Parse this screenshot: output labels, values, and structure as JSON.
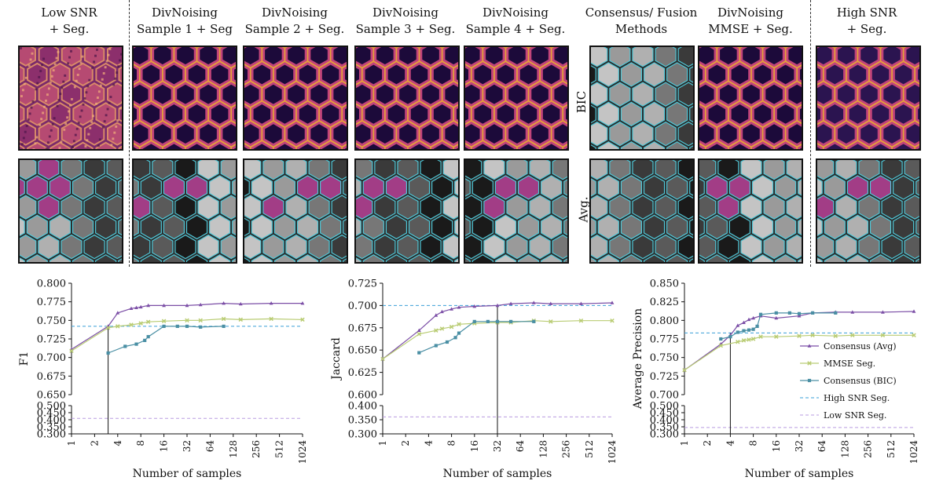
{
  "header": {
    "columns": [
      {
        "title": "Low SNR\n+ Seg.",
        "kind": "low"
      },
      {
        "title": "DivNoising\nSample 1 + Seg",
        "kind": "sample"
      },
      {
        "title": "DivNoising\nSample 2 + Seg.",
        "kind": "sample"
      },
      {
        "title": "DivNoising\nSample 3 + Seg.",
        "kind": "sample"
      },
      {
        "title": "DivNoising\nSample 4 + Seg.",
        "kind": "sample"
      },
      {
        "title": "Consensus/ Fusion\nMethods",
        "kind": "consensus"
      },
      {
        "title": "DivNoising\nMMSE + Seg.",
        "kind": "sample"
      },
      {
        "title": "High SNR\n+ Seg.",
        "kind": "high"
      }
    ],
    "row_labels": {
      "bic": "BIC",
      "avg": "Avg."
    }
  },
  "colors": {
    "avg": "#7b4ea6",
    "mmse": "#b9cc73",
    "bic": "#4a8fa4",
    "high_snr": "#3a9fd8",
    "low_snr": "#b99be0",
    "segment_magenta": "#a23d86",
    "segment_edge": "#4fc8d8"
  },
  "chart_data": [
    {
      "type": "line",
      "ylabel": "F1",
      "xlabel": "Number of samples",
      "x_scale": "log2",
      "x_ticks": [
        "1",
        "2",
        "4",
        "8",
        "16",
        "32",
        "64",
        "128",
        "256",
        "512",
        "1024"
      ],
      "ylim_upper": [
        0.65,
        0.8
      ],
      "ylim_lower": [
        0.3,
        0.5
      ],
      "y_ticks_upper": [
        "0.650",
        "0.675",
        "0.700",
        "0.725",
        "0.750",
        "0.775",
        "0.800"
      ],
      "y_ticks_lower": [
        "0.300",
        "0.350",
        "0.400",
        "0.450",
        "0.500"
      ],
      "series": [
        {
          "name": "Consensus (Avg)",
          "key": "avg",
          "x": [
            1,
            3,
            4,
            6,
            7,
            8,
            10,
            16,
            32,
            48,
            96,
            160,
            400,
            1024
          ],
          "y": [
            0.711,
            0.742,
            0.76,
            0.766,
            0.767,
            0.768,
            0.77,
            0.77,
            0.77,
            0.771,
            0.773,
            0.772,
            0.773,
            0.773
          ]
        },
        {
          "name": "MMSE Seg.",
          "key": "mmse",
          "x": [
            1,
            3,
            4,
            6,
            8,
            10,
            16,
            32,
            48,
            96,
            160,
            400,
            1024
          ],
          "y": [
            0.709,
            0.74,
            0.742,
            0.744,
            0.746,
            0.748,
            0.749,
            0.75,
            0.75,
            0.752,
            0.751,
            0.752,
            0.751
          ]
        },
        {
          "name": "Consensus (BIC)",
          "key": "bic",
          "x": [
            3,
            5,
            7,
            9,
            10,
            16,
            24,
            32,
            48,
            96
          ],
          "y": [
            0.706,
            0.715,
            0.718,
            0.723,
            0.728,
            0.742,
            0.742,
            0.742,
            0.741,
            0.742
          ]
        }
      ],
      "reference_lines": [
        {
          "name": "High SNR Seg.",
          "key": "high_snr",
          "y": 0.742
        },
        {
          "name": "Low SNR Seg.",
          "key": "low_snr",
          "y": 0.41
        }
      ],
      "crossing_x": 3
    },
    {
      "type": "line",
      "ylabel": "Jaccard",
      "xlabel": "Number of samples",
      "x_scale": "log2",
      "x_ticks": [
        "1",
        "2",
        "4",
        "8",
        "16",
        "32",
        "64",
        "128",
        "256",
        "512",
        "1024"
      ],
      "ylim_upper": [
        0.6,
        0.725
      ],
      "ylim_lower": [
        0.3,
        0.4
      ],
      "y_ticks_upper": [
        "0.600",
        "0.625",
        "0.650",
        "0.675",
        "0.700",
        "0.725"
      ],
      "y_ticks_lower": [
        "0.300",
        "0.350",
        "0.400"
      ],
      "series": [
        {
          "name": "Consensus (Avg)",
          "key": "avg",
          "x": [
            1,
            3,
            5,
            6,
            8,
            10,
            16,
            32,
            48,
            96,
            160,
            400,
            1024
          ],
          "y": [
            0.64,
            0.672,
            0.689,
            0.693,
            0.696,
            0.698,
            0.699,
            0.7,
            0.702,
            0.703,
            0.702,
            0.702,
            0.703
          ]
        },
        {
          "name": "MMSE Seg.",
          "key": "mmse",
          "x": [
            1,
            3,
            5,
            6,
            8,
            10,
            16,
            32,
            48,
            96,
            160,
            400,
            1024
          ],
          "y": [
            0.64,
            0.668,
            0.672,
            0.674,
            0.676,
            0.679,
            0.68,
            0.681,
            0.681,
            0.683,
            0.682,
            0.683,
            0.683
          ]
        },
        {
          "name": "Consensus (BIC)",
          "key": "bic",
          "x": [
            3,
            5,
            7,
            9,
            10,
            16,
            24,
            32,
            48,
            96
          ],
          "y": [
            0.647,
            0.655,
            0.659,
            0.664,
            0.669,
            0.682,
            0.682,
            0.682,
            0.682,
            0.682
          ]
        }
      ],
      "reference_lines": [
        {
          "name": "High SNR Seg.",
          "key": "high_snr",
          "y": 0.7
        },
        {
          "name": "Low SNR Seg.",
          "key": "low_snr",
          "y": 0.36
        }
      ],
      "crossing_x": 32
    },
    {
      "type": "line",
      "ylabel": "Average Precision",
      "xlabel": "Number of samples",
      "x_scale": "log2",
      "x_ticks": [
        "1",
        "2",
        "4",
        "8",
        "16",
        "32",
        "64",
        "128",
        "256",
        "512",
        "1024"
      ],
      "ylim_upper": [
        0.7,
        0.85
      ],
      "ylim_lower": [
        0.3,
        0.5
      ],
      "y_ticks_upper": [
        "0.700",
        "0.725",
        "0.750",
        "0.775",
        "0.800",
        "0.825",
        "0.850"
      ],
      "y_ticks_lower": [
        "0.300",
        "0.350",
        "0.400",
        "0.450",
        "0.500"
      ],
      "series": [
        {
          "name": "Consensus (Avg)",
          "key": "avg",
          "x": [
            1,
            3,
            4,
            5,
            6,
            7,
            8,
            10,
            16,
            32,
            48,
            96,
            160,
            400,
            1024
          ],
          "y": [
            0.733,
            0.768,
            0.78,
            0.793,
            0.797,
            0.801,
            0.803,
            0.806,
            0.803,
            0.806,
            0.81,
            0.811,
            0.811,
            0.811,
            0.812
          ]
        },
        {
          "name": "MMSE Seg.",
          "key": "mmse",
          "x": [
            1,
            3,
            5,
            6,
            7,
            8,
            10,
            16,
            32,
            48,
            96,
            160,
            400,
            1024
          ],
          "y": [
            0.733,
            0.766,
            0.771,
            0.773,
            0.774,
            0.775,
            0.778,
            0.778,
            0.779,
            0.78,
            0.779,
            0.78,
            0.78,
            0.78
          ]
        },
        {
          "name": "Consensus (BIC)",
          "key": "bic",
          "x": [
            3,
            4,
            5,
            6,
            7,
            8,
            9,
            10,
            16,
            24,
            32,
            48,
            96
          ],
          "y": [
            0.775,
            0.778,
            0.784,
            0.786,
            0.787,
            0.788,
            0.792,
            0.808,
            0.81,
            0.81,
            0.809,
            0.81,
            0.81
          ]
        }
      ],
      "reference_lines": [
        {
          "name": "High SNR Seg.",
          "key": "high_snr",
          "y": 0.783
        },
        {
          "name": "Low SNR Seg.",
          "key": "low_snr",
          "y": 0.345
        }
      ],
      "crossing_x": 4,
      "legend": {
        "placement": "right",
        "entries": [
          {
            "label": "Consensus (Avg)",
            "key": "avg",
            "style": "line-marker"
          },
          {
            "label": "MMSE Seg.",
            "key": "mmse",
            "style": "line-marker"
          },
          {
            "label": "Consensus (BIC)",
            "key": "bic",
            "style": "line-marker"
          },
          {
            "label": "High SNR Seg.",
            "key": "high_snr",
            "style": "dashed"
          },
          {
            "label": "Low SNR Seg.",
            "key": "low_snr",
            "style": "dashed"
          }
        ]
      }
    }
  ]
}
